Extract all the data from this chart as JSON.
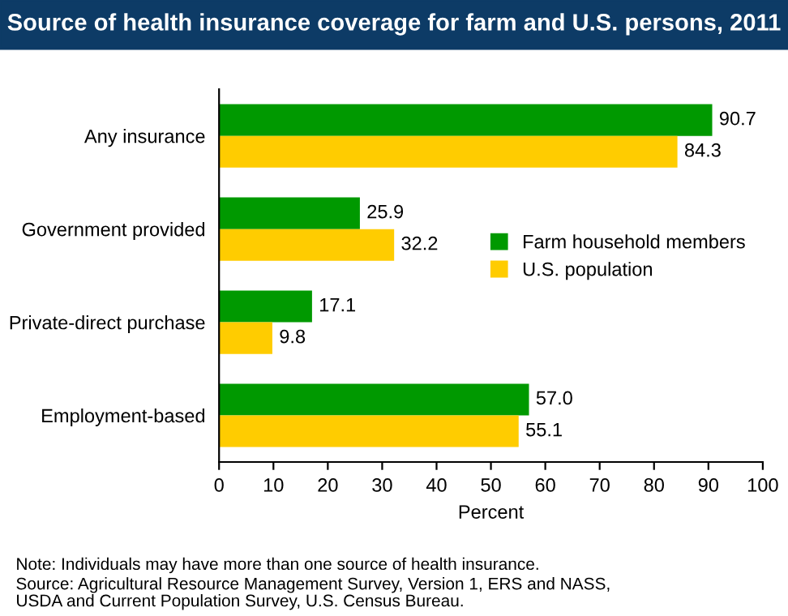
{
  "chart_data": {
    "type": "bar",
    "orientation": "horizontal",
    "title": "Source of health insurance coverage for farm and U.S. persons, 2011",
    "categories": [
      "Any insurance",
      "Government provided",
      "Private-direct purchase",
      "Employment-based"
    ],
    "series": [
      {
        "name": "Farm household members",
        "color": "#009900",
        "values": [
          90.7,
          25.9,
          17.1,
          57.0
        ],
        "value_labels": [
          "90.7",
          "25.9",
          "17.1",
          "57.0"
        ]
      },
      {
        "name": "U.S. population",
        "color": "#ffcc00",
        "values": [
          84.3,
          32.2,
          9.8,
          55.1
        ],
        "value_labels": [
          "84.3",
          "32.2",
          "9.8",
          "55.1"
        ]
      }
    ],
    "xlabel": "Percent",
    "xlim": [
      0,
      100
    ],
    "xticks": [
      0,
      10,
      20,
      30,
      40,
      50,
      60,
      70,
      80,
      90,
      100
    ],
    "grid": false,
    "legend": "right",
    "annotations": [
      "Note: Individuals may have more than one source of health insurance.",
      "Source: Agricultural Resource Management Survey, Version 1, ERS and NASS,\nUSDA and Current Population Survey, U.S. Census Bureau."
    ]
  }
}
